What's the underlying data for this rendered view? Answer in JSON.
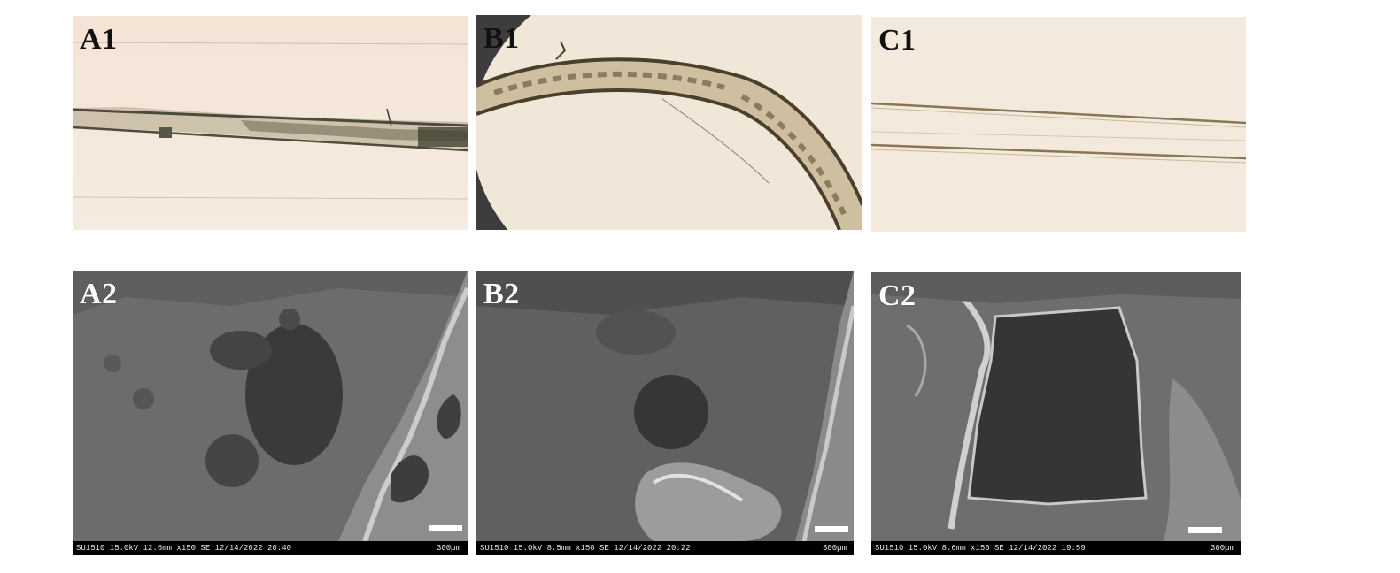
{
  "panels": {
    "A1": {
      "label": "A1"
    },
    "B1": {
      "label": "B1"
    },
    "C1": {
      "label": "C1"
    },
    "A2": {
      "label": "A2",
      "info": "SU1510 15.0kV 12.6mm x150 SE  12/14/2022 20:40",
      "scale": "300µm"
    },
    "B2": {
      "label": "B2",
      "info": "SU1510 15.0kV 8.5mm x150 SE  12/14/2022 20:22",
      "scale": "300µm"
    },
    "C2": {
      "label": "C2",
      "info": "SU1510 15.0kV 8.6mm x150 SE  12/14/2022 19:59",
      "scale": "300µm"
    }
  }
}
